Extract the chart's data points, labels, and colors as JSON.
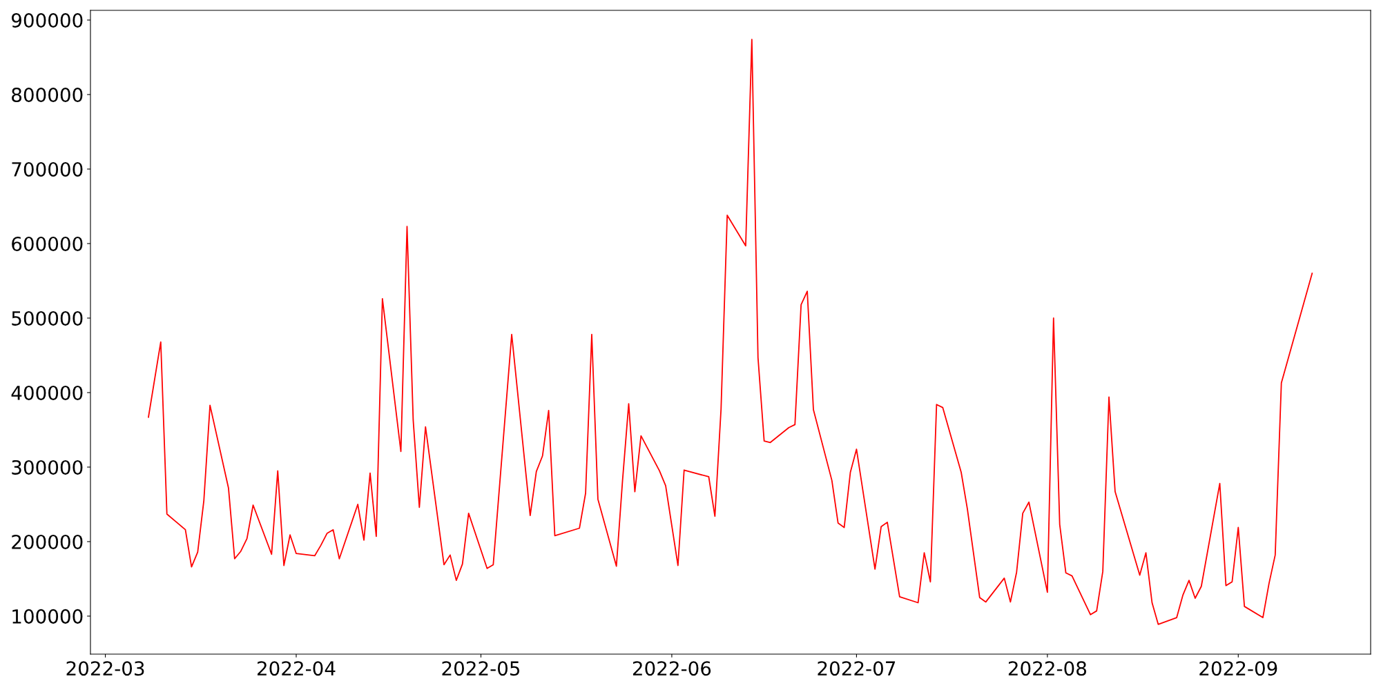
{
  "chart_data": {
    "type": "line",
    "x": [
      "2022-03-08",
      "2022-03-10",
      "2022-03-11",
      "2022-03-14",
      "2022-03-15",
      "2022-03-16",
      "2022-03-17",
      "2022-03-18",
      "2022-03-21",
      "2022-03-22",
      "2022-03-23",
      "2022-03-24",
      "2022-03-25",
      "2022-03-28",
      "2022-03-29",
      "2022-03-30",
      "2022-03-31",
      "2022-04-01",
      "2022-04-04",
      "2022-04-05",
      "2022-04-06",
      "2022-04-07",
      "2022-04-08",
      "2022-04-11",
      "2022-04-12",
      "2022-04-13",
      "2022-04-14",
      "2022-04-15",
      "2022-04-18",
      "2022-04-19",
      "2022-04-20",
      "2022-04-21",
      "2022-04-22",
      "2022-04-25",
      "2022-04-26",
      "2022-04-27",
      "2022-04-28",
      "2022-04-29",
      "2022-05-02",
      "2022-05-03",
      "2022-05-06",
      "2022-05-09",
      "2022-05-10",
      "2022-05-11",
      "2022-05-12",
      "2022-05-13",
      "2022-05-17",
      "2022-05-18",
      "2022-05-19",
      "2022-05-20",
      "2022-05-23",
      "2022-05-24",
      "2022-05-25",
      "2022-05-26",
      "2022-05-27",
      "2022-05-30",
      "2022-05-31",
      "2022-06-02",
      "2022-06-03",
      "2022-06-07",
      "2022-06-08",
      "2022-06-09",
      "2022-06-10",
      "2022-06-13",
      "2022-06-14",
      "2022-06-15",
      "2022-06-16",
      "2022-06-17",
      "2022-06-20",
      "2022-06-21",
      "2022-06-22",
      "2022-06-23",
      "2022-06-24",
      "2022-06-27",
      "2022-06-28",
      "2022-06-29",
      "2022-06-30",
      "2022-07-01",
      "2022-07-04",
      "2022-07-05",
      "2022-07-06",
      "2022-07-08",
      "2022-07-11",
      "2022-07-12",
      "2022-07-13",
      "2022-07-14",
      "2022-07-15",
      "2022-07-18",
      "2022-07-19",
      "2022-07-21",
      "2022-07-22",
      "2022-07-25",
      "2022-07-26",
      "2022-07-27",
      "2022-07-28",
      "2022-07-29",
      "2022-08-01",
      "2022-08-02",
      "2022-08-03",
      "2022-08-04",
      "2022-08-05",
      "2022-08-08",
      "2022-08-09",
      "2022-08-10",
      "2022-08-11",
      "2022-08-12",
      "2022-08-16",
      "2022-08-17",
      "2022-08-18",
      "2022-08-19",
      "2022-08-22",
      "2022-08-23",
      "2022-08-24",
      "2022-08-25",
      "2022-08-26",
      "2022-08-29",
      "2022-08-30",
      "2022-08-31",
      "2022-09-01",
      "2022-09-02",
      "2022-09-05",
      "2022-09-06",
      "2022-09-07",
      "2022-09-08",
      "2022-09-13"
    ],
    "series": [
      {
        "color": "#ff0000",
        "values": [
          367000,
          468000,
          237000,
          216000,
          166000,
          186000,
          255000,
          383000,
          272000,
          177000,
          187000,
          204000,
          249000,
          183000,
          295000,
          168000,
          209000,
          184000,
          181000,
          195000,
          211000,
          216000,
          177000,
          250000,
          202000,
          292000,
          207000,
          526000,
          321000,
          623000,
          363000,
          246000,
          354000,
          169000,
          182000,
          148000,
          170000,
          238000,
          164000,
          169000,
          478000,
          235000,
          294000,
          315000,
          376000,
          208000,
          218000,
          265000,
          478000,
          257000,
          167000,
          282000,
          385000,
          267000,
          342000,
          295000,
          275000,
          168000,
          296000,
          287000,
          234000,
          378000,
          638000,
          597000,
          874000,
          447000,
          335000,
          333000,
          353000,
          357000,
          518000,
          536000,
          377000,
          282000,
          225000,
          219000,
          293000,
          324000,
          163000,
          220000,
          226000,
          126000,
          118000,
          185000,
          146000,
          384000,
          380000,
          293000,
          244000,
          125000,
          119000,
          151000,
          119000,
          159000,
          238000,
          253000,
          132000,
          500000,
          223000,
          158000,
          154000,
          102000,
          107000,
          160000,
          394000,
          267000,
          155000,
          185000,
          118000,
          89000,
          98000,
          128000,
          148000,
          124000,
          140000,
          278000,
          141000,
          146000,
          219000,
          113000,
          98000,
          144000,
          182000,
          413000,
          560000
        ]
      }
    ],
    "xlim": [
      "2022-02-26T14:00",
      "2022-09-22T12:00"
    ],
    "ylim": [
      49000,
      913000
    ],
    "xticks": [
      {
        "value": "2022-03-01",
        "label": "2022-03"
      },
      {
        "value": "2022-04-01",
        "label": "2022-04"
      },
      {
        "value": "2022-05-01",
        "label": "2022-05"
      },
      {
        "value": "2022-06-01",
        "label": "2022-06"
      },
      {
        "value": "2022-07-01",
        "label": "2022-07"
      },
      {
        "value": "2022-08-01",
        "label": "2022-08"
      },
      {
        "value": "2022-09-01",
        "label": "2022-09"
      }
    ],
    "yticks": [
      100000,
      200000,
      300000,
      400000,
      500000,
      600000,
      700000,
      800000,
      900000
    ],
    "grid": false,
    "marker": "none",
    "line_style": "solid"
  }
}
